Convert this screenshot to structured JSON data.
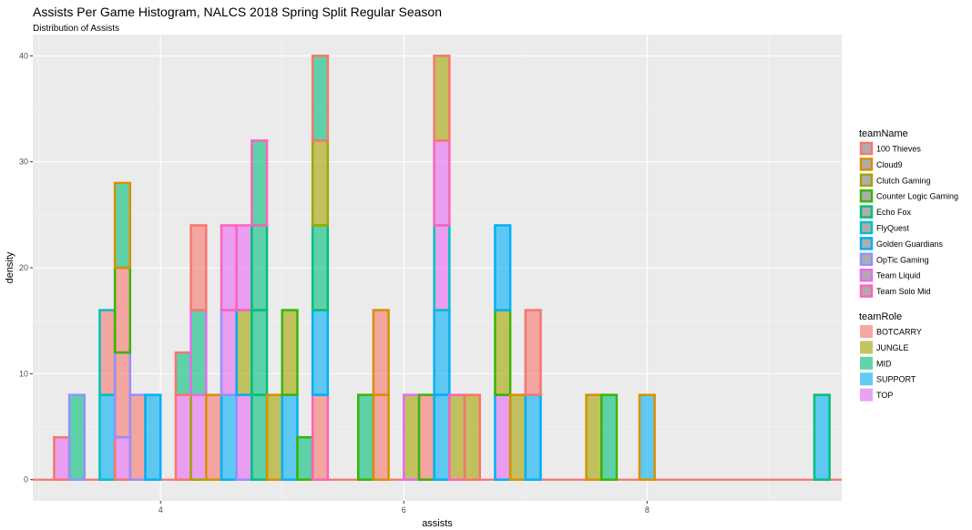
{
  "chart_data": {
    "type": "bar",
    "title": "Assists Per Game Histogram, NALCS 2018 Spring Split Regular Season",
    "subtitle": "Distribution of Assists",
    "xlabel": "assists",
    "ylabel": "density",
    "xlim": [
      2.95,
      9.6
    ],
    "ylim": [
      -2,
      42
    ],
    "x_ticks": [
      4,
      6,
      8
    ],
    "x_tick_labels": [
      "4",
      "6",
      "8"
    ],
    "y_ticks": [
      0,
      10,
      20,
      30,
      40
    ],
    "y_tick_labels": [
      "0",
      "10",
      "20",
      "30",
      "40"
    ],
    "bin_width": 0.125,
    "baseline": {
      "x": [
        2.95,
        9.6
      ],
      "y": 0,
      "team": "100 Thieves"
    },
    "grid": true,
    "legends": [
      {
        "title": "teamName",
        "kind": "outline",
        "entries": [
          {
            "label": "100 Thieves",
            "color": "#F8766D"
          },
          {
            "label": "Cloud9",
            "color": "#D89000"
          },
          {
            "label": "Clutch Gaming",
            "color": "#A3A500"
          },
          {
            "label": "Counter Logic Gaming",
            "color": "#39B600"
          },
          {
            "label": "Echo Fox",
            "color": "#00BF7D"
          },
          {
            "label": "FlyQuest",
            "color": "#00BFC4"
          },
          {
            "label": "Golden Guardians",
            "color": "#00B0F6"
          },
          {
            "label": "OpTic Gaming",
            "color": "#9590FF"
          },
          {
            "label": "Team Liquid",
            "color": "#E76BF3"
          },
          {
            "label": "Team Solo Mid",
            "color": "#FF62BC"
          }
        ]
      },
      {
        "title": "teamRole",
        "kind": "fill",
        "entries": [
          {
            "label": "BOTCARRY",
            "color": "#F8766D"
          },
          {
            "label": "JUNGLE",
            "color": "#A3A500"
          },
          {
            "label": "MID",
            "color": "#00BF7D"
          },
          {
            "label": "SUPPORT",
            "color": "#00B0F6"
          },
          {
            "label": "TOP",
            "color": "#E76BF3"
          }
        ]
      }
    ],
    "bars": [
      {
        "x": 3.1875,
        "y0": 0,
        "y1": 4,
        "role": "TOP",
        "team": "100 Thieves"
      },
      {
        "x": 3.3125,
        "y0": 0,
        "y1": 8,
        "role": "MID",
        "team": "OpTic Gaming"
      },
      {
        "x": 3.5625,
        "y0": 0,
        "y1": 8,
        "role": "SUPPORT",
        "team": "FlyQuest"
      },
      {
        "x": 3.5625,
        "y0": 8,
        "y1": 16,
        "role": "BOTCARRY",
        "team": "FlyQuest"
      },
      {
        "x": 3.6875,
        "y0": 0,
        "y1": 4,
        "role": "TOP",
        "team": "100 Thieves"
      },
      {
        "x": 3.6875,
        "y0": 4,
        "y1": 12,
        "role": "BOTCARRY",
        "team": "OpTic Gaming"
      },
      {
        "x": 3.6875,
        "y0": 12,
        "y1": 20,
        "role": "BOTCARRY",
        "team": "Counter Logic Gaming"
      },
      {
        "x": 3.6875,
        "y0": 20,
        "y1": 28,
        "role": "MID",
        "team": "Cloud9"
      },
      {
        "x": 3.8125,
        "y0": 0,
        "y1": 8,
        "role": "BOTCARRY",
        "team": "OpTic Gaming"
      },
      {
        "x": 3.9375,
        "y0": 0,
        "y1": 8,
        "role": "SUPPORT",
        "team": "Golden Guardians"
      },
      {
        "x": 4.1875,
        "y0": 0,
        "y1": 8,
        "role": "TOP",
        "team": "100 Thieves"
      },
      {
        "x": 4.1875,
        "y0": 8,
        "y1": 12,
        "role": "MID",
        "team": "100 Thieves"
      },
      {
        "x": 4.3125,
        "y0": 0,
        "y1": 8,
        "role": "TOP",
        "team": "Clutch Gaming"
      },
      {
        "x": 4.3125,
        "y0": 8,
        "y1": 16,
        "role": "MID",
        "team": "Team Liquid"
      },
      {
        "x": 4.3125,
        "y0": 16,
        "y1": 24,
        "role": "BOTCARRY",
        "team": "100 Thieves"
      },
      {
        "x": 4.4375,
        "y0": 0,
        "y1": 8,
        "role": "BOTCARRY",
        "team": "Cloud9"
      },
      {
        "x": 4.5625,
        "y0": 0,
        "y1": 8,
        "role": "SUPPORT",
        "team": "Golden Guardians"
      },
      {
        "x": 4.5625,
        "y0": 8,
        "y1": 16,
        "role": "TOP",
        "team": "OpTic Gaming"
      },
      {
        "x": 4.5625,
        "y0": 16,
        "y1": 24,
        "role": "TOP",
        "team": "Team Solo Mid"
      },
      {
        "x": 4.6875,
        "y0": 0,
        "y1": 8,
        "role": "TOP",
        "team": "OpTic Gaming"
      },
      {
        "x": 4.6875,
        "y0": 8,
        "y1": 16,
        "role": "JUNGLE",
        "team": "Golden Guardians"
      },
      {
        "x": 4.6875,
        "y0": 16,
        "y1": 24,
        "role": "TOP",
        "team": "Team Solo Mid"
      },
      {
        "x": 4.8125,
        "y0": 0,
        "y1": 8,
        "role": "MID",
        "team": "Echo Fox"
      },
      {
        "x": 4.8125,
        "y0": 8,
        "y1": 16,
        "role": "MID",
        "team": "Echo Fox"
      },
      {
        "x": 4.8125,
        "y0": 16,
        "y1": 24,
        "role": "MID",
        "team": "Echo Fox"
      },
      {
        "x": 4.8125,
        "y0": 24,
        "y1": 32,
        "role": "MID",
        "team": "Team Solo Mid"
      },
      {
        "x": 4.9375,
        "y0": 0,
        "y1": 8,
        "role": "JUNGLE",
        "team": "Cloud9"
      },
      {
        "x": 5.0625,
        "y0": 0,
        "y1": 8,
        "role": "SUPPORT",
        "team": "Golden Guardians"
      },
      {
        "x": 5.0625,
        "y0": 8,
        "y1": 16,
        "role": "JUNGLE",
        "team": "Counter Logic Gaming"
      },
      {
        "x": 5.1875,
        "y0": 0,
        "y1": 4,
        "role": "MID",
        "team": "Counter Logic Gaming"
      },
      {
        "x": 5.3125,
        "y0": 0,
        "y1": 8,
        "role": "BOTCARRY",
        "team": "Team Solo Mid"
      },
      {
        "x": 5.3125,
        "y0": 8,
        "y1": 16,
        "role": "SUPPORT",
        "team": "Golden Guardians"
      },
      {
        "x": 5.3125,
        "y0": 16,
        "y1": 24,
        "role": "MID",
        "team": "Echo Fox"
      },
      {
        "x": 5.3125,
        "y0": 24,
        "y1": 32,
        "role": "JUNGLE",
        "team": "Clutch Gaming"
      },
      {
        "x": 5.3125,
        "y0": 32,
        "y1": 40,
        "role": "MID",
        "team": "100 Thieves"
      },
      {
        "x": 5.6875,
        "y0": 0,
        "y1": 8,
        "role": "MID",
        "team": "Counter Logic Gaming"
      },
      {
        "x": 5.8125,
        "y0": 0,
        "y1": 8,
        "role": "BOTCARRY",
        "team": "Cloud9"
      },
      {
        "x": 5.8125,
        "y0": 8,
        "y1": 16,
        "role": "BOTCARRY",
        "team": "Cloud9"
      },
      {
        "x": 6.0625,
        "y0": 0,
        "y1": 8,
        "role": "JUNGLE",
        "team": "Team Liquid"
      },
      {
        "x": 6.1875,
        "y0": 0,
        "y1": 8,
        "role": "BOTCARRY",
        "team": "Counter Logic Gaming"
      },
      {
        "x": 6.3125,
        "y0": 0,
        "y1": 8,
        "role": "SUPPORT",
        "team": "Golden Guardians"
      },
      {
        "x": 6.3125,
        "y0": 8,
        "y1": 16,
        "role": "SUPPORT",
        "team": "Golden Guardians"
      },
      {
        "x": 6.3125,
        "y0": 16,
        "y1": 24,
        "role": "TOP",
        "team": "FlyQuest"
      },
      {
        "x": 6.3125,
        "y0": 24,
        "y1": 32,
        "role": "TOP",
        "team": "Team Solo Mid"
      },
      {
        "x": 6.3125,
        "y0": 32,
        "y1": 40,
        "role": "JUNGLE",
        "team": "100 Thieves"
      },
      {
        "x": 6.4375,
        "y0": 0,
        "y1": 8,
        "role": "JUNGLE",
        "team": "Team Solo Mid"
      },
      {
        "x": 6.5625,
        "y0": 0,
        "y1": 8,
        "role": "JUNGLE",
        "team": "100 Thieves"
      },
      {
        "x": 6.8125,
        "y0": 0,
        "y1": 8,
        "role": "TOP",
        "team": "Golden Guardians"
      },
      {
        "x": 6.8125,
        "y0": 8,
        "y1": 16,
        "role": "JUNGLE",
        "team": "Counter Logic Gaming"
      },
      {
        "x": 6.8125,
        "y0": 16,
        "y1": 24,
        "role": "SUPPORT",
        "team": "Golden Guardians"
      },
      {
        "x": 6.9375,
        "y0": 0,
        "y1": 8,
        "role": "JUNGLE",
        "team": "Cloud9"
      },
      {
        "x": 7.0625,
        "y0": 0,
        "y1": 8,
        "role": "SUPPORT",
        "team": "Golden Guardians"
      },
      {
        "x": 7.0625,
        "y0": 8,
        "y1": 16,
        "role": "BOTCARRY",
        "team": "100 Thieves"
      },
      {
        "x": 7.5625,
        "y0": 0,
        "y1": 8,
        "role": "JUNGLE",
        "team": "Cloud9"
      },
      {
        "x": 7.6875,
        "y0": 0,
        "y1": 8,
        "role": "MID",
        "team": "Counter Logic Gaming"
      },
      {
        "x": 8.0,
        "y0": 0,
        "y1": 8,
        "role": "SUPPORT",
        "team": "Cloud9"
      },
      {
        "x": 9.4375,
        "y0": 0,
        "y1": 8,
        "role": "SUPPORT",
        "team": "Echo Fox"
      }
    ]
  }
}
